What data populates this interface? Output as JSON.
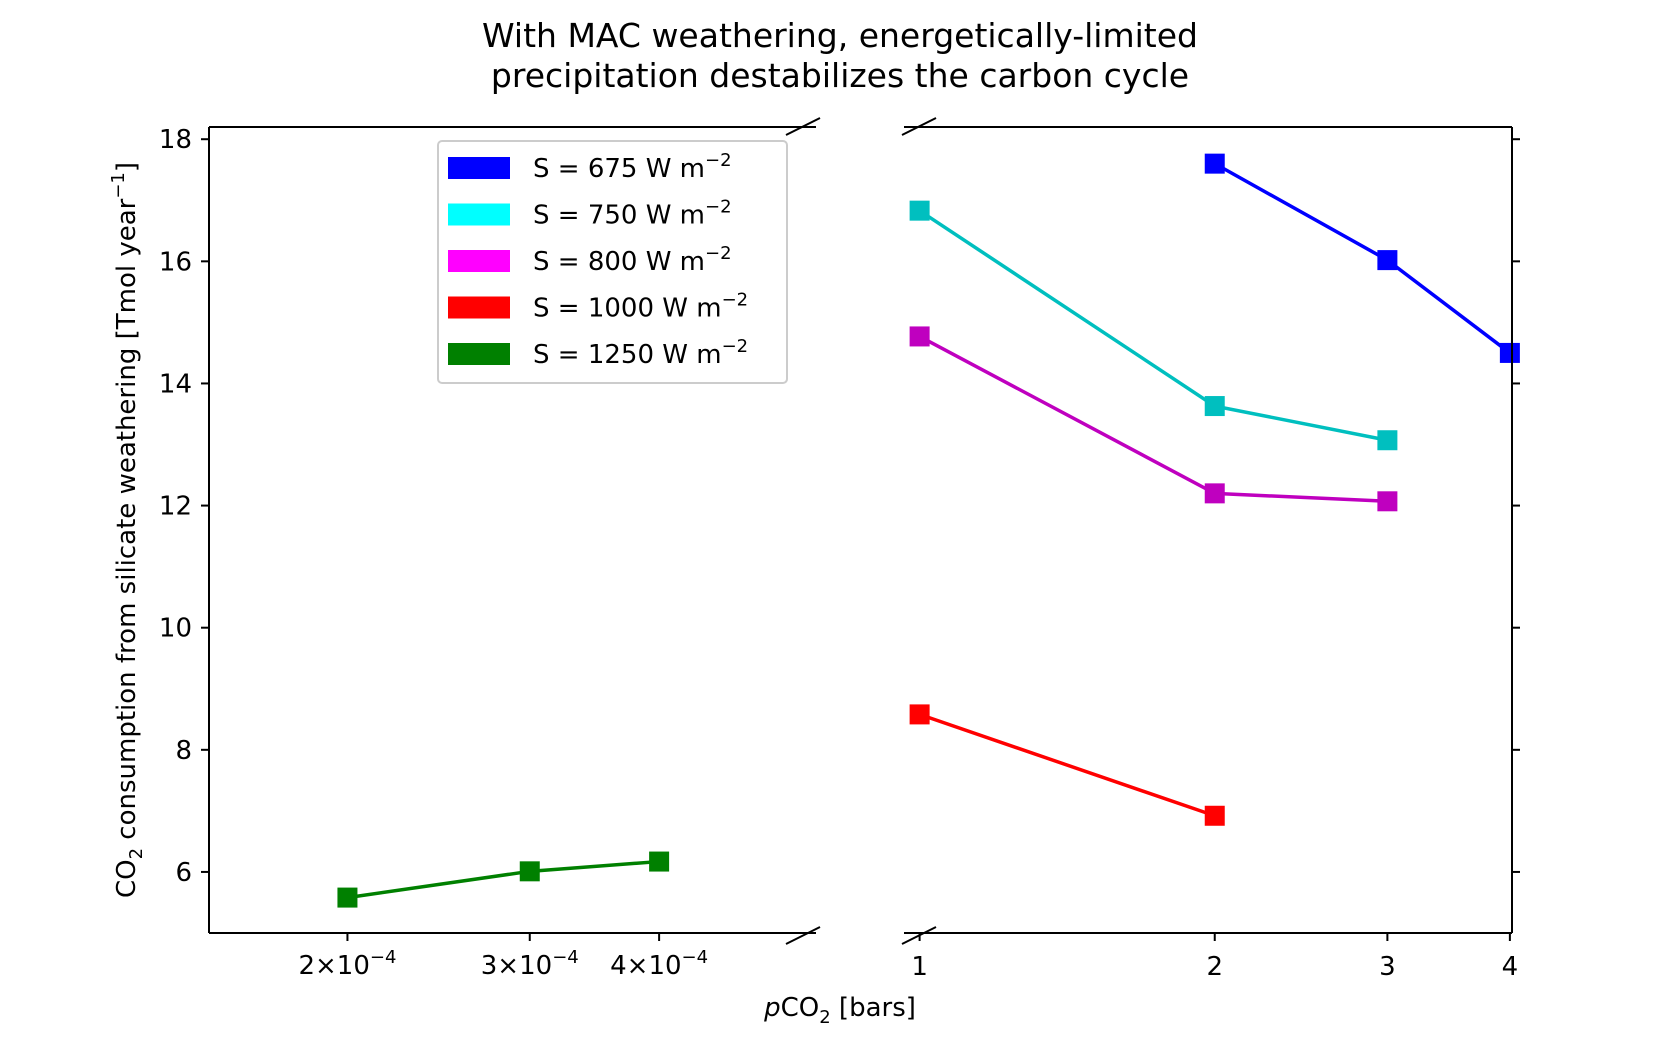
{
  "chart_data": {
    "type": "line",
    "title_lines": [
      "With MAC weathering, energetically-limited",
      "precipitation destabilizes the carbon cycle"
    ],
    "xlabel": {
      "prefix": "p",
      "main": "CO",
      "sub": "2",
      "suffix": " [bars]"
    },
    "ylabel": {
      "main": "CO",
      "sub": "2",
      "text": " consumption from silicate weathering [Tmol year",
      "sup": "−1",
      "tail": "]"
    },
    "x_scale": "log",
    "broken_x_axis": true,
    "left_panel": {
      "xlim": [
        0.000147,
        0.000567
      ],
      "xticks": [
        {
          "value": 0.0002,
          "mant": "2",
          "exp": "−4"
        },
        {
          "value": 0.0003,
          "mant": "3",
          "exp": "−4"
        },
        {
          "value": 0.0004,
          "mant": "4",
          "exp": "−4"
        }
      ]
    },
    "right_panel": {
      "xlim": [
        0.964,
        4.02
      ],
      "xticks": [
        {
          "value": 1,
          "label": "1"
        },
        {
          "value": 2,
          "label": "2"
        },
        {
          "value": 3,
          "label": "3"
        },
        {
          "value": 4,
          "label": "4"
        }
      ]
    },
    "ylim": [
      5.0,
      18.2
    ],
    "yticks": [
      6,
      8,
      10,
      12,
      14,
      16,
      18
    ],
    "legend_position": "upper-left",
    "series": [
      {
        "name": "S = 675 W m",
        "sup": "−2",
        "color": "#0000ff",
        "x": [
          2,
          3,
          4
        ],
        "y": [
          17.6,
          16.02,
          14.5
        ]
      },
      {
        "name": "S = 750 W m",
        "sup": "−2",
        "color": "#00bfbf",
        "legend_color": "#00ffff",
        "x": [
          1,
          2,
          3
        ],
        "y": [
          16.83,
          13.63,
          13.07
        ]
      },
      {
        "name": "S = 800 W m",
        "sup": "−2",
        "color": "#bf00bf",
        "legend_color": "#ff00ff",
        "x": [
          1,
          2,
          3
        ],
        "y": [
          14.77,
          12.2,
          12.07
        ]
      },
      {
        "name": "S = 1000 W m",
        "sup": "−2",
        "color": "#ff0000",
        "x": [
          1,
          2
        ],
        "y": [
          8.58,
          6.92
        ]
      },
      {
        "name": "S = 1250 W m",
        "sup": "−2",
        "color": "#008000",
        "x": [
          0.0002,
          0.0003,
          0.0004
        ],
        "y": [
          5.58,
          6.01,
          6.17
        ]
      }
    ]
  }
}
